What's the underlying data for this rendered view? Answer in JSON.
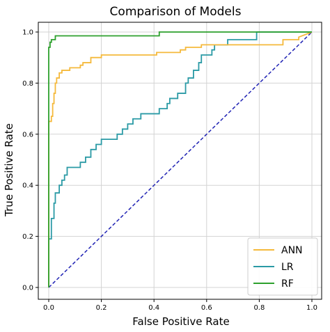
{
  "chart_data": {
    "type": "line",
    "title": "Comparison of Models",
    "xlabel": "False Positive Rate",
    "ylabel": "True Positive Rate",
    "xlim": [
      0,
      1
    ],
    "ylim": [
      0,
      1
    ],
    "xticks": [
      0.0,
      0.2,
      0.4,
      0.6,
      0.8,
      1.0
    ],
    "yticks": [
      0.0,
      0.2,
      0.4,
      0.6,
      0.8,
      1.0
    ],
    "xtick_labels": [
      "0.0",
      "0.2",
      "0.4",
      "0.6",
      "0.8",
      "1.0"
    ],
    "ytick_labels": [
      "0.0",
      "0.2",
      "0.4",
      "0.6",
      "0.8",
      "1.0"
    ],
    "grid": true,
    "legend_position": "bottom-right",
    "series": [
      {
        "name": "ANN",
        "color": "#f5b93b",
        "points": [
          [
            0,
            0
          ],
          [
            0,
            0.65
          ],
          [
            0.01,
            0.65
          ],
          [
            0.01,
            0.67
          ],
          [
            0.015,
            0.67
          ],
          [
            0.015,
            0.72
          ],
          [
            0.02,
            0.72
          ],
          [
            0.02,
            0.76
          ],
          [
            0.025,
            0.76
          ],
          [
            0.025,
            0.8
          ],
          [
            0.03,
            0.8
          ],
          [
            0.03,
            0.82
          ],
          [
            0.04,
            0.82
          ],
          [
            0.04,
            0.84
          ],
          [
            0.05,
            0.84
          ],
          [
            0.05,
            0.85
          ],
          [
            0.08,
            0.85
          ],
          [
            0.08,
            0.86
          ],
          [
            0.12,
            0.86
          ],
          [
            0.12,
            0.87
          ],
          [
            0.13,
            0.87
          ],
          [
            0.13,
            0.88
          ],
          [
            0.16,
            0.88
          ],
          [
            0.16,
            0.9
          ],
          [
            0.2,
            0.9
          ],
          [
            0.2,
            0.91
          ],
          [
            0.41,
            0.91
          ],
          [
            0.41,
            0.92
          ],
          [
            0.5,
            0.92
          ],
          [
            0.5,
            0.93
          ],
          [
            0.52,
            0.93
          ],
          [
            0.52,
            0.94
          ],
          [
            0.58,
            0.94
          ],
          [
            0.58,
            0.95
          ],
          [
            0.89,
            0.95
          ],
          [
            0.89,
            0.97
          ],
          [
            0.95,
            0.97
          ],
          [
            0.95,
            0.98
          ],
          [
            1,
            1
          ]
        ]
      },
      {
        "name": "LR",
        "color": "#2a9aa5",
        "points": [
          [
            0,
            0
          ],
          [
            0,
            0.19
          ],
          [
            0.01,
            0.19
          ],
          [
            0.01,
            0.27
          ],
          [
            0.02,
            0.27
          ],
          [
            0.02,
            0.33
          ],
          [
            0.025,
            0.33
          ],
          [
            0.025,
            0.37
          ],
          [
            0.04,
            0.37
          ],
          [
            0.04,
            0.4
          ],
          [
            0.05,
            0.4
          ],
          [
            0.05,
            0.42
          ],
          [
            0.06,
            0.42
          ],
          [
            0.06,
            0.44
          ],
          [
            0.07,
            0.44
          ],
          [
            0.07,
            0.47
          ],
          [
            0.12,
            0.47
          ],
          [
            0.12,
            0.49
          ],
          [
            0.14,
            0.49
          ],
          [
            0.14,
            0.51
          ],
          [
            0.16,
            0.51
          ],
          [
            0.16,
            0.54
          ],
          [
            0.18,
            0.54
          ],
          [
            0.18,
            0.56
          ],
          [
            0.2,
            0.56
          ],
          [
            0.2,
            0.58
          ],
          [
            0.26,
            0.58
          ],
          [
            0.26,
            0.6
          ],
          [
            0.28,
            0.6
          ],
          [
            0.28,
            0.62
          ],
          [
            0.3,
            0.62
          ],
          [
            0.3,
            0.64
          ],
          [
            0.32,
            0.64
          ],
          [
            0.32,
            0.66
          ],
          [
            0.35,
            0.66
          ],
          [
            0.35,
            0.68
          ],
          [
            0.42,
            0.68
          ],
          [
            0.42,
            0.7
          ],
          [
            0.45,
            0.7
          ],
          [
            0.45,
            0.72
          ],
          [
            0.46,
            0.72
          ],
          [
            0.46,
            0.74
          ],
          [
            0.49,
            0.74
          ],
          [
            0.49,
            0.76
          ],
          [
            0.52,
            0.76
          ],
          [
            0.52,
            0.8
          ],
          [
            0.53,
            0.8
          ],
          [
            0.53,
            0.82
          ],
          [
            0.55,
            0.82
          ],
          [
            0.55,
            0.85
          ],
          [
            0.57,
            0.85
          ],
          [
            0.57,
            0.88
          ],
          [
            0.58,
            0.88
          ],
          [
            0.58,
            0.91
          ],
          [
            0.62,
            0.91
          ],
          [
            0.62,
            0.93
          ],
          [
            0.63,
            0.93
          ],
          [
            0.63,
            0.95
          ],
          [
            0.68,
            0.95
          ],
          [
            0.68,
            0.97
          ],
          [
            0.79,
            0.97
          ],
          [
            0.79,
            1
          ],
          [
            1,
            1
          ]
        ]
      },
      {
        "name": "RF",
        "color": "#2ca02c",
        "points": [
          [
            0,
            0
          ],
          [
            0,
            0.94
          ],
          [
            0.005,
            0.94
          ],
          [
            0.005,
            0.96
          ],
          [
            0.01,
            0.96
          ],
          [
            0.01,
            0.97
          ],
          [
            0.025,
            0.97
          ],
          [
            0.025,
            0.985
          ],
          [
            0.42,
            0.985
          ],
          [
            0.42,
            1
          ],
          [
            1,
            1
          ]
        ]
      },
      {
        "name": "",
        "color": "#1f22b4",
        "dashed": true,
        "points": [
          [
            0,
            0
          ],
          [
            1,
            1
          ]
        ]
      }
    ]
  }
}
